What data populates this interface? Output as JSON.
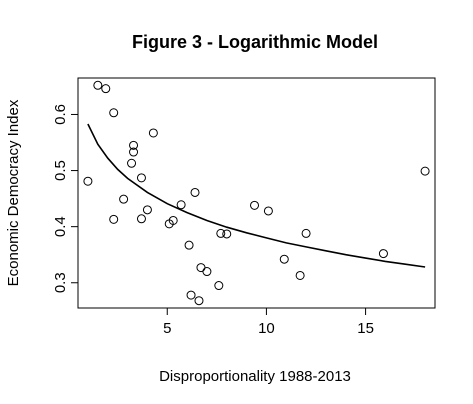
{
  "chart_data": {
    "type": "scatter",
    "title": "Figure 3 - Logarithmic Model",
    "xlabel": "Disproportionality 1988-2013",
    "ylabel": "Economic Democracy Index",
    "xlim": [
      0.5,
      18.5
    ],
    "ylim": [
      0.255,
      0.665
    ],
    "x_ticks": [
      5,
      10,
      15
    ],
    "y_ticks": [
      0.3,
      0.4,
      0.5,
      0.6
    ],
    "x_tick_labels": [
      "5",
      "10",
      "15"
    ],
    "y_tick_labels": [
      "0.3",
      "0.4",
      "0.5",
      "0.6"
    ],
    "grid": false,
    "legend": "none",
    "points": [
      {
        "x": 1.0,
        "y": 0.481
      },
      {
        "x": 1.5,
        "y": 0.652
      },
      {
        "x": 1.9,
        "y": 0.646
      },
      {
        "x": 2.3,
        "y": 0.603
      },
      {
        "x": 2.3,
        "y": 0.413
      },
      {
        "x": 2.8,
        "y": 0.449
      },
      {
        "x": 3.2,
        "y": 0.513
      },
      {
        "x": 3.3,
        "y": 0.545
      },
      {
        "x": 3.3,
        "y": 0.533
      },
      {
        "x": 3.7,
        "y": 0.487
      },
      {
        "x": 3.7,
        "y": 0.414
      },
      {
        "x": 4.0,
        "y": 0.43
      },
      {
        "x": 4.3,
        "y": 0.567
      },
      {
        "x": 5.1,
        "y": 0.405
      },
      {
        "x": 5.3,
        "y": 0.411
      },
      {
        "x": 5.7,
        "y": 0.439
      },
      {
        "x": 6.1,
        "y": 0.367
      },
      {
        "x": 6.2,
        "y": 0.278
      },
      {
        "x": 6.4,
        "y": 0.461
      },
      {
        "x": 6.6,
        "y": 0.268
      },
      {
        "x": 6.7,
        "y": 0.327
      },
      {
        "x": 7.0,
        "y": 0.32
      },
      {
        "x": 7.6,
        "y": 0.295
      },
      {
        "x": 7.7,
        "y": 0.388
      },
      {
        "x": 8.0,
        "y": 0.387
      },
      {
        "x": 9.4,
        "y": 0.438
      },
      {
        "x": 10.1,
        "y": 0.428
      },
      {
        "x": 10.9,
        "y": 0.342
      },
      {
        "x": 11.7,
        "y": 0.313
      },
      {
        "x": 12.0,
        "y": 0.388
      },
      {
        "x": 15.9,
        "y": 0.352
      },
      {
        "x": 18.0,
        "y": 0.499
      }
    ],
    "fit_line": {
      "model": "logarithmic",
      "x": [
        1.0,
        1.5,
        2.0,
        2.5,
        3.0,
        4.0,
        5.0,
        6.0,
        7.0,
        8.0,
        9.0,
        10.0,
        11.0,
        12.0,
        13.0,
        14.0,
        15.0,
        16.0,
        17.0,
        18.0
      ],
      "y": [
        0.583,
        0.547,
        0.522,
        0.502,
        0.486,
        0.461,
        0.441,
        0.425,
        0.411,
        0.399,
        0.389,
        0.38,
        0.371,
        0.364,
        0.357,
        0.35,
        0.344,
        0.338,
        0.333,
        0.328
      ]
    }
  }
}
